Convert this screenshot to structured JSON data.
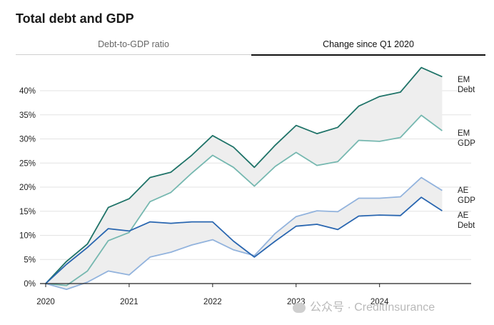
{
  "title": "Total debt and GDP",
  "tabs": [
    {
      "label": "Debt-to-GDP ratio",
      "active": false
    },
    {
      "label": "Change since Q1 2020",
      "active": true
    }
  ],
  "watermark": "公众号 · CreditInsurance",
  "colors": {
    "em_debt": "#1f7368",
    "em_gdp": "#76b8b0",
    "ae_debt": "#2966b0",
    "ae_gdp": "#92b3dd",
    "band": "#eeeeee",
    "grid": "#e3e3e3"
  },
  "chart_data": {
    "type": "line",
    "title": "Total debt and GDP",
    "xlabel": "",
    "ylabel": "",
    "ylim": [
      0,
      45
    ],
    "xlim": [
      2020,
      2024.875
    ],
    "y_ticks": [
      "0%",
      "5%",
      "10%",
      "15%",
      "20%",
      "25%",
      "30%",
      "35%",
      "40%"
    ],
    "x_ticks": [
      "2020",
      "2021",
      "2022",
      "2023",
      "2024"
    ],
    "grid": true,
    "legend": "line-end labels",
    "x": [
      2020,
      2020.25,
      2020.5,
      2020.75,
      2021,
      2021.25,
      2021.5,
      2021.75,
      2022,
      2022.25,
      2022.5,
      2022.75,
      2023,
      2023.25,
      2023.5,
      2023.75,
      2024,
      2024.25,
      2024.5,
      2024.75
    ],
    "series": [
      {
        "name": "EM Debt",
        "label_lines": [
          "EM",
          "Debt"
        ],
        "color": "#1f7368",
        "values": [
          0,
          4.6,
          8.2,
          15.8,
          17.6,
          22.0,
          23.1,
          26.6,
          30.7,
          28.3,
          24.1,
          28.7,
          32.8,
          31.1,
          32.4,
          36.8,
          38.8,
          39.7,
          44.8,
          42.9
        ]
      },
      {
        "name": "EM GDP",
        "label_lines": [
          "EM",
          "GDP"
        ],
        "color": "#76b8b0",
        "values": [
          0,
          -0.4,
          2.6,
          8.9,
          10.6,
          17.0,
          18.9,
          22.9,
          26.6,
          24.1,
          20.2,
          24.3,
          27.2,
          24.5,
          25.3,
          29.7,
          29.5,
          30.3,
          34.9,
          31.7
        ]
      },
      {
        "name": "AE GDP",
        "label_lines": [
          "AE",
          "GDP"
        ],
        "color": "#92b3dd",
        "values": [
          0,
          -1.2,
          0.3,
          2.6,
          1.8,
          5.5,
          6.5,
          8.0,
          9.1,
          7.0,
          5.8,
          10.4,
          13.9,
          15.1,
          14.9,
          17.7,
          17.7,
          18.0,
          22.0,
          19.3
        ]
      },
      {
        "name": "AE Debt",
        "label_lines": [
          "AE",
          "Debt"
        ],
        "color": "#2966b0",
        "values": [
          0,
          4.0,
          7.5,
          11.4,
          10.9,
          12.8,
          12.5,
          12.8,
          12.8,
          8.8,
          5.5,
          8.8,
          11.9,
          12.3,
          11.2,
          14.0,
          14.2,
          14.1,
          17.9,
          15.1
        ]
      }
    ],
    "bands": [
      {
        "upper": "EM Debt",
        "lower": "EM GDP"
      },
      {
        "upper": "AE GDP",
        "lower": "AE Debt"
      }
    ]
  }
}
